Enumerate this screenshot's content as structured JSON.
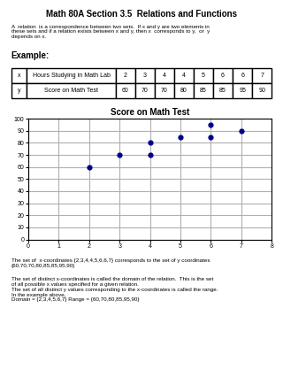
{
  "chart_data": [
    {
      "type": "table",
      "title": "Math 80A Section 3.5  Relations and Functions",
      "annotations": [
        "A  relation  is a correspondence between two sets.  If x and y are two elements in\nthese sets and if a relation exists between x and y, then x  corresponds to y,  or  y\ndepends on x.",
        "Example:"
      ],
      "rows": [
        {
          "label": "x",
          "name": "Hours Studying in Math Lab",
          "values": [
            2,
            3,
            4,
            4,
            5,
            6,
            6,
            7
          ]
        },
        {
          "label": "y",
          "name": "Score on Math Test",
          "values": [
            60,
            70,
            70,
            80,
            85,
            85,
            95,
            90
          ]
        }
      ]
    },
    {
      "type": "scatter",
      "title": "Score on Math Test",
      "x": [
        2,
        3,
        4,
        4,
        5,
        6,
        6,
        7
      ],
      "values": [
        60,
        70,
        70,
        80,
        85,
        85,
        95,
        90
      ],
      "color": "#00008B",
      "xlim": [
        0,
        8
      ],
      "ylim": [
        0,
        100
      ],
      "xticks": [
        0,
        1,
        2,
        3,
        4,
        5,
        6,
        7,
        8
      ],
      "yticks": [
        0,
        10,
        20,
        30,
        40,
        50,
        60,
        70,
        80,
        90,
        100
      ],
      "grid": true,
      "annotations": [
        "The set of  x-coordinates {2,3,4,4,5,6,6,7} corresponds to the set of y coordinates\n{60,70,70,80,85,85,95,90}",
        "The set of distinct x-coordinates is called the domain of the relation.  This is the set\nof all possible x values specified for a given relation.\nThe set of all distinct y values corresponding to the x-coordinates is called the range.\nIn the example above,\nDomain = {2,3,4,5,6,7} Range = {60,70,80,85,95,90}"
      ]
    }
  ]
}
